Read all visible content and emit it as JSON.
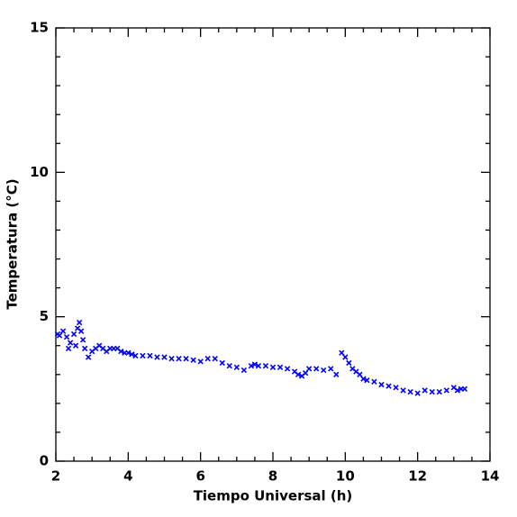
{
  "chart_data": {
    "type": "scatter",
    "xlabel": "Tiempo Universal (h)",
    "ylabel": "Temperatura (°C)",
    "xlim": [
      2,
      14
    ],
    "ylim": [
      0,
      15
    ],
    "xticks": [
      2,
      4,
      6,
      8,
      10,
      12,
      14
    ],
    "yticks": [
      0,
      5,
      10,
      15
    ],
    "xminorticks": [
      2.5,
      3,
      3.5,
      4.5,
      5,
      5.5,
      6.5,
      7,
      7.5,
      8.5,
      9,
      9.5,
      10.5,
      11,
      11.5,
      12.5,
      13,
      13.5
    ],
    "yminorticks": [
      1,
      2,
      3,
      4,
      6,
      7,
      8,
      9,
      11,
      12,
      13,
      14
    ],
    "color": "#0000ff",
    "x": [
      2.05,
      2.1,
      2.2,
      2.3,
      2.35,
      2.4,
      2.5,
      2.55,
      2.6,
      2.65,
      2.7,
      2.75,
      2.8,
      2.9,
      3.0,
      3.1,
      3.2,
      3.3,
      3.4,
      3.5,
      3.6,
      3.7,
      3.8,
      3.9,
      4.0,
      4.1,
      4.2,
      4.4,
      4.6,
      4.8,
      5.0,
      5.2,
      5.4,
      5.6,
      5.8,
      6.0,
      6.2,
      6.4,
      6.6,
      6.8,
      7.0,
      7.2,
      7.4,
      7.5,
      7.6,
      7.8,
      8.0,
      8.2,
      8.4,
      8.6,
      8.7,
      8.8,
      8.9,
      9.0,
      9.2,
      9.4,
      9.6,
      9.75,
      9.9,
      10.0,
      10.1,
      10.2,
      10.3,
      10.4,
      10.5,
      10.6,
      10.8,
      11.0,
      11.2,
      11.4,
      11.6,
      11.8,
      12.0,
      12.2,
      12.4,
      12.6,
      12.8,
      13.0,
      13.1,
      13.2,
      13.3
    ],
    "values": [
      4.4,
      4.35,
      4.5,
      4.3,
      3.9,
      4.1,
      4.4,
      4.0,
      4.6,
      4.8,
      4.5,
      4.2,
      3.9,
      3.6,
      3.8,
      3.9,
      4.0,
      3.9,
      3.8,
      3.9,
      3.9,
      3.9,
      3.8,
      3.75,
      3.75,
      3.7,
      3.65,
      3.65,
      3.65,
      3.6,
      3.6,
      3.55,
      3.55,
      3.55,
      3.5,
      3.45,
      3.55,
      3.55,
      3.4,
      3.3,
      3.25,
      3.15,
      3.3,
      3.35,
      3.3,
      3.3,
      3.25,
      3.25,
      3.2,
      3.1,
      3.0,
      2.95,
      3.05,
      3.2,
      3.2,
      3.15,
      3.2,
      3.0,
      3.75,
      3.6,
      3.4,
      3.2,
      3.1,
      3.0,
      2.85,
      2.8,
      2.75,
      2.65,
      2.6,
      2.55,
      2.45,
      2.4,
      2.35,
      2.45,
      2.4,
      2.4,
      2.45,
      2.55,
      2.45,
      2.5,
      2.5
    ]
  }
}
